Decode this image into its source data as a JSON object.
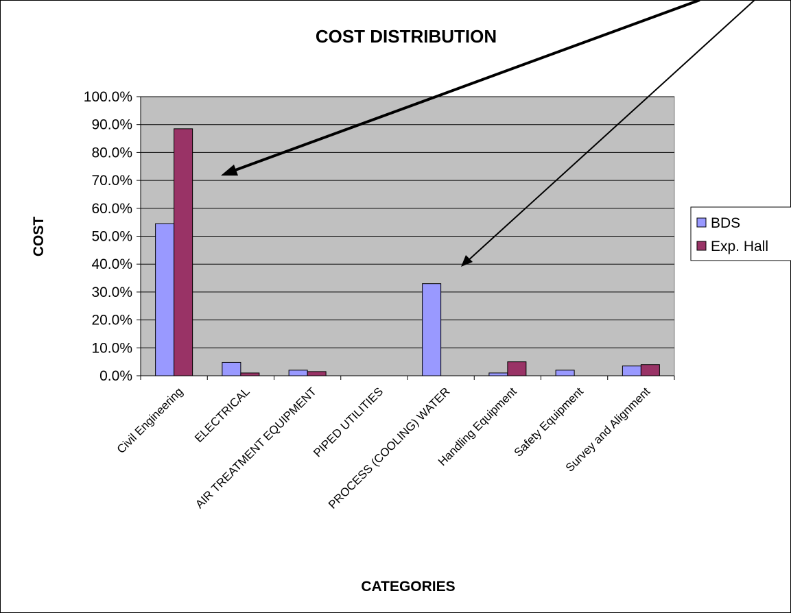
{
  "chart_data": {
    "type": "bar",
    "title": "COST DISTRIBUTION",
    "xlabel": "CATEGORIES",
    "ylabel": "COST",
    "ylim": [
      0,
      100
    ],
    "y_ticks": [
      "0.0%",
      "10.0%",
      "20.0%",
      "30.0%",
      "40.0%",
      "50.0%",
      "60.0%",
      "70.0%",
      "80.0%",
      "90.0%",
      "100.0%"
    ],
    "categories": [
      "Civil Engineering",
      "ELECTRICAL",
      "AIR TREATMENT EQUIPMENT",
      "PIPED UTILITIES",
      "PROCESS (COOLING) WATER",
      "Handling Equipment",
      "Safety Equipment",
      "Survey and Alignment"
    ],
    "series": [
      {
        "name": "BDS",
        "color": "#9999ff",
        "values": [
          54.5,
          4.8,
          2.0,
          0.0,
          33.0,
          1.0,
          2.0,
          3.5
        ]
      },
      {
        "name": "Exp. Hall",
        "color": "#993366",
        "values": [
          88.5,
          1.0,
          1.5,
          0.0,
          0.0,
          5.0,
          0.0,
          4.0
        ]
      }
    ],
    "grid": true,
    "plot_background": "#c0c0c0",
    "legend_position": "right"
  }
}
